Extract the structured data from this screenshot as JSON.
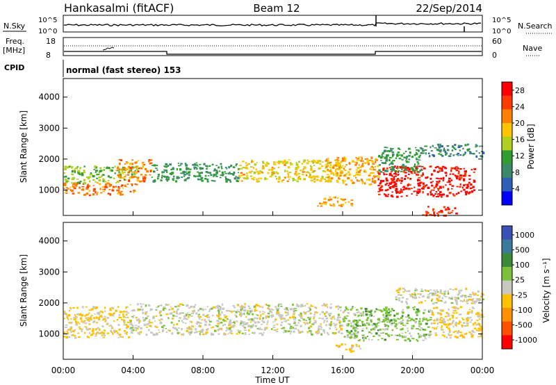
{
  "header": {
    "station": "Hankasalmi (fitACF)",
    "beam": "Beam 12",
    "date": "22/Sep/2014"
  },
  "status_panels": {
    "nsky_label": "N.Sky",
    "nsearch_label": "N.Search",
    "noise_ticks": [
      "10^5",
      "10^0"
    ],
    "freq_label": "Freq.",
    "freq_unit": "[MHz]",
    "freq_ticks": [
      "18",
      "8"
    ],
    "nave_ticks": [
      "60",
      "0"
    ],
    "nave_label": "Nave",
    "cpid_label": "CPID",
    "cpid_text": "normal (fast stereo) 153"
  },
  "time_axis": {
    "label": "Time UT",
    "ticks": [
      "00:00",
      "04:00",
      "08:00",
      "12:00",
      "16:00",
      "20:00",
      "00:00"
    ]
  },
  "colors": {
    "power": [
      "#0000ff",
      "#2d5fb8",
      "#3a8a6a",
      "#2f9e2f",
      "#b0d020",
      "#ffc400",
      "#ff7f00",
      "#ff3a00",
      "#ff0000"
    ],
    "velocity": [
      "#3a52b8",
      "#3a7a9a",
      "#3a8a3a",
      "#7ac23a",
      "#c8c8c0",
      "#ffc000",
      "#ff9000",
      "#ff5000",
      "#ff0000"
    ]
  },
  "chart_data": [
    {
      "type": "heatmap",
      "title": "Power",
      "x_range_hours": [
        0,
        24
      ],
      "ylabel": "Slant Range [km]",
      "ylim": [
        180,
        4600
      ],
      "y_ticks": [
        "1000",
        "2000",
        "3000",
        "4000"
      ],
      "colorbar": {
        "label": "Power [dB]",
        "ticks": [
          "4",
          "8",
          "12",
          "16",
          "20",
          "24",
          "28"
        ],
        "range": [
          0,
          30
        ]
      },
      "regions": [
        {
          "x": [
            0.0,
            4.2
          ],
          "y": [
            850,
            1250
          ],
          "value": 22
        },
        {
          "x": [
            0.0,
            4.2
          ],
          "y": [
            1250,
            1800
          ],
          "value": 14
        },
        {
          "x": [
            3.0,
            5.0
          ],
          "y": [
            1300,
            2000
          ],
          "value": 22
        },
        {
          "x": [
            5.0,
            10.0
          ],
          "y": [
            1300,
            1900
          ],
          "value": 10
        },
        {
          "x": [
            10.0,
            16.0
          ],
          "y": [
            1300,
            2000
          ],
          "value": 18
        },
        {
          "x": [
            15.0,
            18.0
          ],
          "y": [
            1200,
            2100
          ],
          "value": 20
        },
        {
          "x": [
            18.0,
            23.5
          ],
          "y": [
            800,
            1800
          ],
          "value": 28
        },
        {
          "x": [
            18.0,
            20.5
          ],
          "y": [
            1600,
            2400
          ],
          "value": 10
        },
        {
          "x": [
            20.5,
            24.0
          ],
          "y": [
            2100,
            2500
          ],
          "value": 8
        },
        {
          "x": [
            14.5,
            16.5
          ],
          "y": [
            500,
            800
          ],
          "value": 20
        },
        {
          "x": [
            20.5,
            22.5
          ],
          "y": [
            200,
            500
          ],
          "value": 26
        }
      ]
    },
    {
      "type": "heatmap",
      "title": "Velocity",
      "x_range_hours": [
        0,
        24
      ],
      "ylabel": "Slant Range [km]",
      "ylim": [
        180,
        4600
      ],
      "y_ticks": [
        "1000",
        "2000",
        "3000",
        "4000"
      ],
      "colorbar": {
        "label": "Velocity [m s⁻¹]",
        "ticks": [
          "1000",
          "500",
          "100",
          "25",
          "-25",
          "-100",
          "-500",
          "-1000"
        ],
        "range": [
          -1000,
          1000
        ]
      },
      "regions": [
        {
          "x": [
            0.0,
            3.8
          ],
          "y": [
            900,
            1900
          ],
          "value": -150
        },
        {
          "x": [
            3.8,
            16.0
          ],
          "y": [
            1000,
            2000
          ],
          "value": 0
        },
        {
          "x": [
            16.0,
            21.0
          ],
          "y": [
            800,
            1900
          ],
          "value": 200
        },
        {
          "x": [
            21.0,
            24.0
          ],
          "y": [
            900,
            1900
          ],
          "value": -150
        },
        {
          "x": [
            19.0,
            24.0
          ],
          "y": [
            2000,
            2500
          ],
          "value": 0
        },
        {
          "x": [
            15.5,
            17.0
          ],
          "y": [
            450,
            700
          ],
          "value": -120
        }
      ]
    }
  ]
}
